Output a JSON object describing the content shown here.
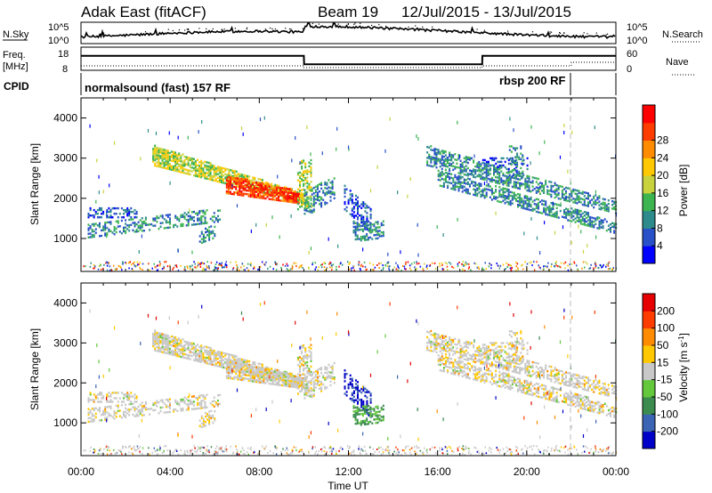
{
  "header": {
    "station": "Adak East (fitACF)",
    "beam": "Beam 19",
    "date_range": "12/Jul/2015 - 13/Jul/2015"
  },
  "panels": {
    "noise": {
      "left_label": "N.Sky",
      "right_label": "N.Search",
      "left_ticks": [
        "10^5",
        "10^0"
      ],
      "right_ticks": [
        "10^5",
        "10^0"
      ]
    },
    "freq": {
      "left_label_1": "Freq.",
      "left_label_2": "[MHz]",
      "right_label": "Nave",
      "left_ticks": [
        "18",
        "8"
      ],
      "right_ticks": [
        "60",
        "0"
      ]
    },
    "cpid": {
      "label": "CPID",
      "segments": [
        "normalsound (fast) 157 RF",
        "rbsp 200 RF"
      ]
    }
  },
  "chart_data": [
    {
      "type": "line",
      "name": "noise",
      "x": [
        0,
        2,
        4,
        6,
        8,
        10,
        10.01,
        12,
        14,
        16,
        18,
        20,
        22,
        24
      ],
      "series": [
        {
          "name": "N.Sky",
          "values": [
            1.6,
            2.2,
            2.9,
            3.4,
            3.6,
            3.3,
            5.2,
            5.1,
            4.4,
            3.8,
            3.0,
            2.3,
            1.8,
            1.6
          ]
        }
      ]
    },
    {
      "type": "line",
      "name": "frequency",
      "x": [
        0,
        10,
        10.01,
        18,
        18.01,
        24
      ],
      "series": [
        {
          "name": "Freq.",
          "values": [
            14.5,
            14.5,
            10.2,
            10.2,
            14.5,
            14.5
          ]
        }
      ]
    },
    {
      "type": "heatmap",
      "name": "power",
      "xlabel": "Time UT",
      "ylabel": "Slant Range [km]",
      "xlim": [
        0,
        24
      ],
      "ylim": [
        180,
        4500
      ],
      "yticks": [
        1000,
        2000,
        3000,
        4000
      ],
      "xtick_labels": [
        "00:00",
        "04:00",
        "08:00",
        "12:00",
        "16:00",
        "20:00",
        "00:00"
      ],
      "colorbar": {
        "label": "Power [dB]",
        "ticks": [
          4,
          8,
          12,
          16,
          20,
          24,
          28
        ],
        "range": [
          0,
          32
        ]
      },
      "colors": [
        "#0000ff",
        "#2850c8",
        "#2e8b8b",
        "#3cb450",
        "#c8d23c",
        "#ffc800",
        "#ff8c00",
        "#ff3c00",
        "#ff0000"
      ]
    },
    {
      "type": "heatmap",
      "name": "velocity",
      "xlabel": "Time UT",
      "ylabel": "Slant Range [km]",
      "xlim": [
        0,
        24
      ],
      "ylim": [
        180,
        4500
      ],
      "yticks": [
        1000,
        2000,
        3000,
        4000
      ],
      "xtick_labels": [
        "00:00",
        "04:00",
        "08:00",
        "12:00",
        "16:00",
        "20:00",
        "00:00"
      ],
      "colorbar": {
        "label": "Velocity [m s^-1]",
        "ticks": [
          "200",
          "100",
          "50",
          "15",
          "-15",
          "-50",
          "-100",
          "-200"
        ]
      },
      "colors": [
        "#0000c8",
        "#3c64b4",
        "#3c8c50",
        "#64c83c",
        "#c8c8c8",
        "#ffc800",
        "#ff8c00",
        "#ff3c00",
        "#e60000"
      ]
    }
  ],
  "xaxis": {
    "label": "Time UT"
  }
}
